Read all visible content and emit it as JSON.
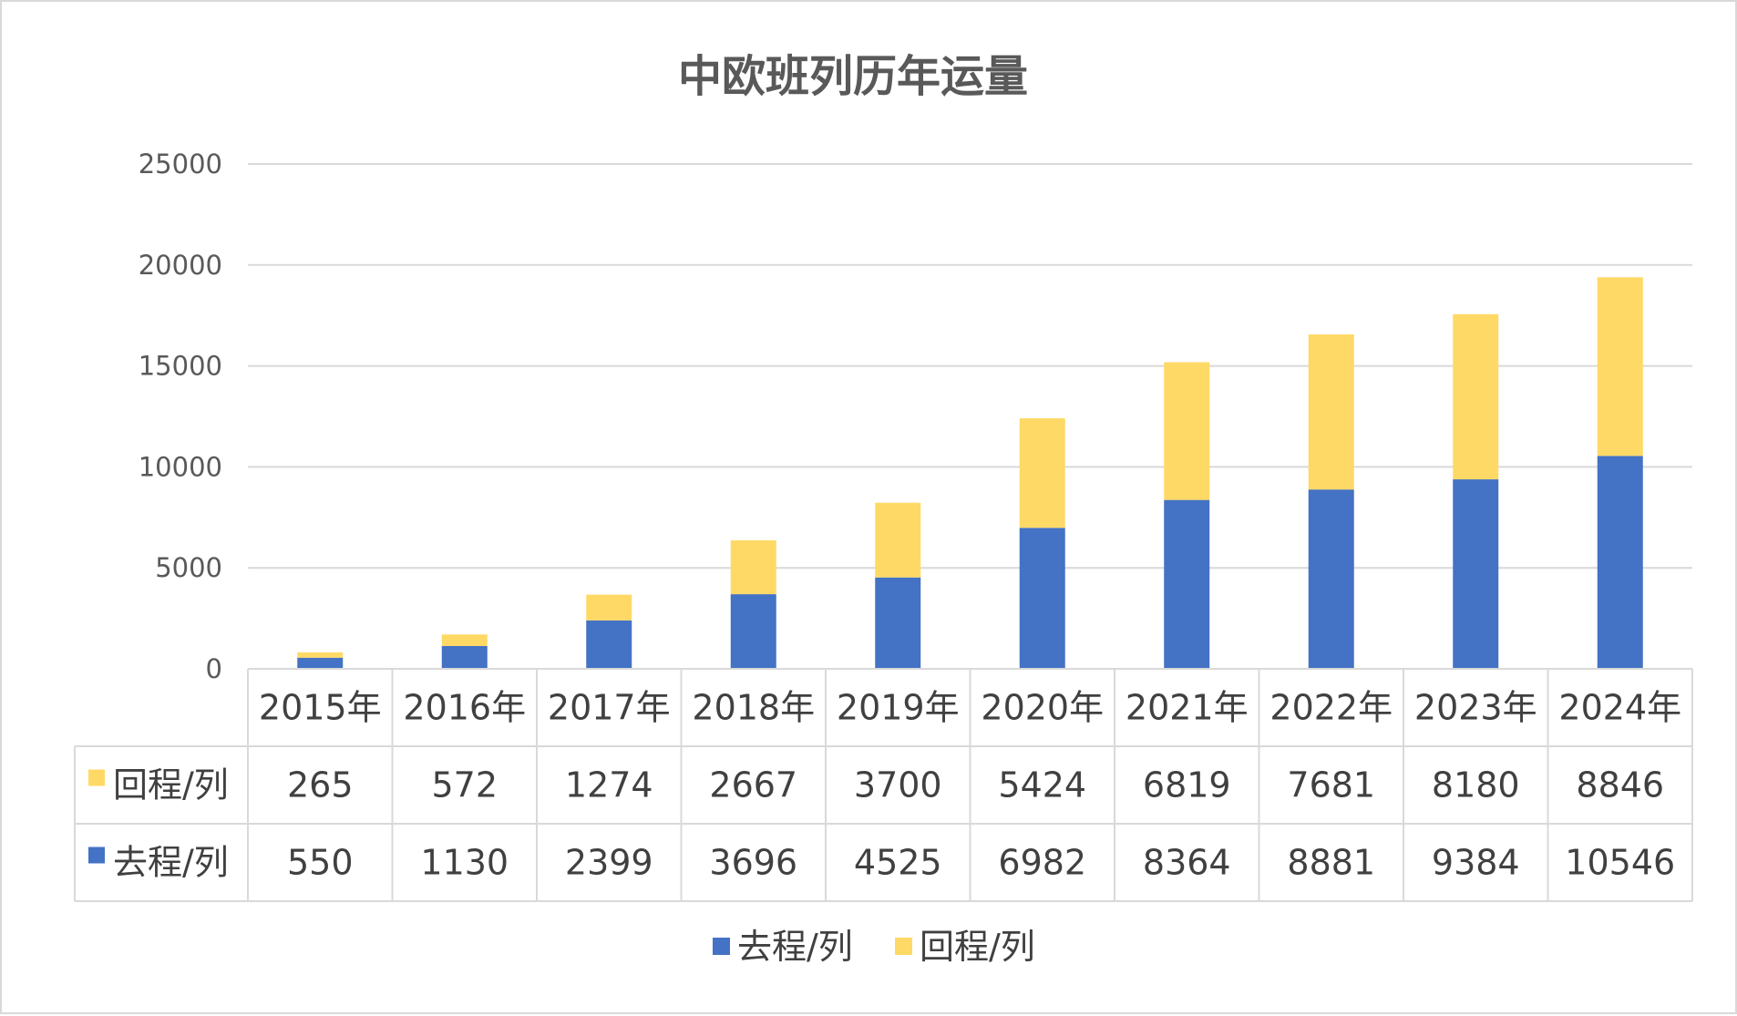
{
  "chart_data": {
    "type": "bar",
    "stacked": true,
    "title": "中欧班列历年运量",
    "categories": [
      "2015年",
      "2016年",
      "2017年",
      "2018年",
      "2019年",
      "2020年",
      "2021年",
      "2022年",
      "2023年",
      "2024年"
    ],
    "series": [
      {
        "name": "去程/列",
        "color": "#4472c4",
        "values": [
          550,
          1130,
          2399,
          3696,
          4525,
          6982,
          8364,
          8881,
          9384,
          10546
        ]
      },
      {
        "name": "回程/列",
        "color": "#ffd966",
        "values": [
          265,
          572,
          1274,
          2667,
          3700,
          5424,
          6819,
          7681,
          8180,
          8846
        ]
      }
    ],
    "table_rows_order": [
      "回程/列",
      "去程/列"
    ],
    "yticks": [
      "0",
      "5000",
      "10000",
      "15000",
      "20000",
      "25000"
    ],
    "ylim": [
      0,
      25000
    ],
    "grid": true,
    "data_table": true,
    "legend": {
      "position": "bottom",
      "entries": [
        "去程/列",
        "回程/列"
      ]
    }
  }
}
